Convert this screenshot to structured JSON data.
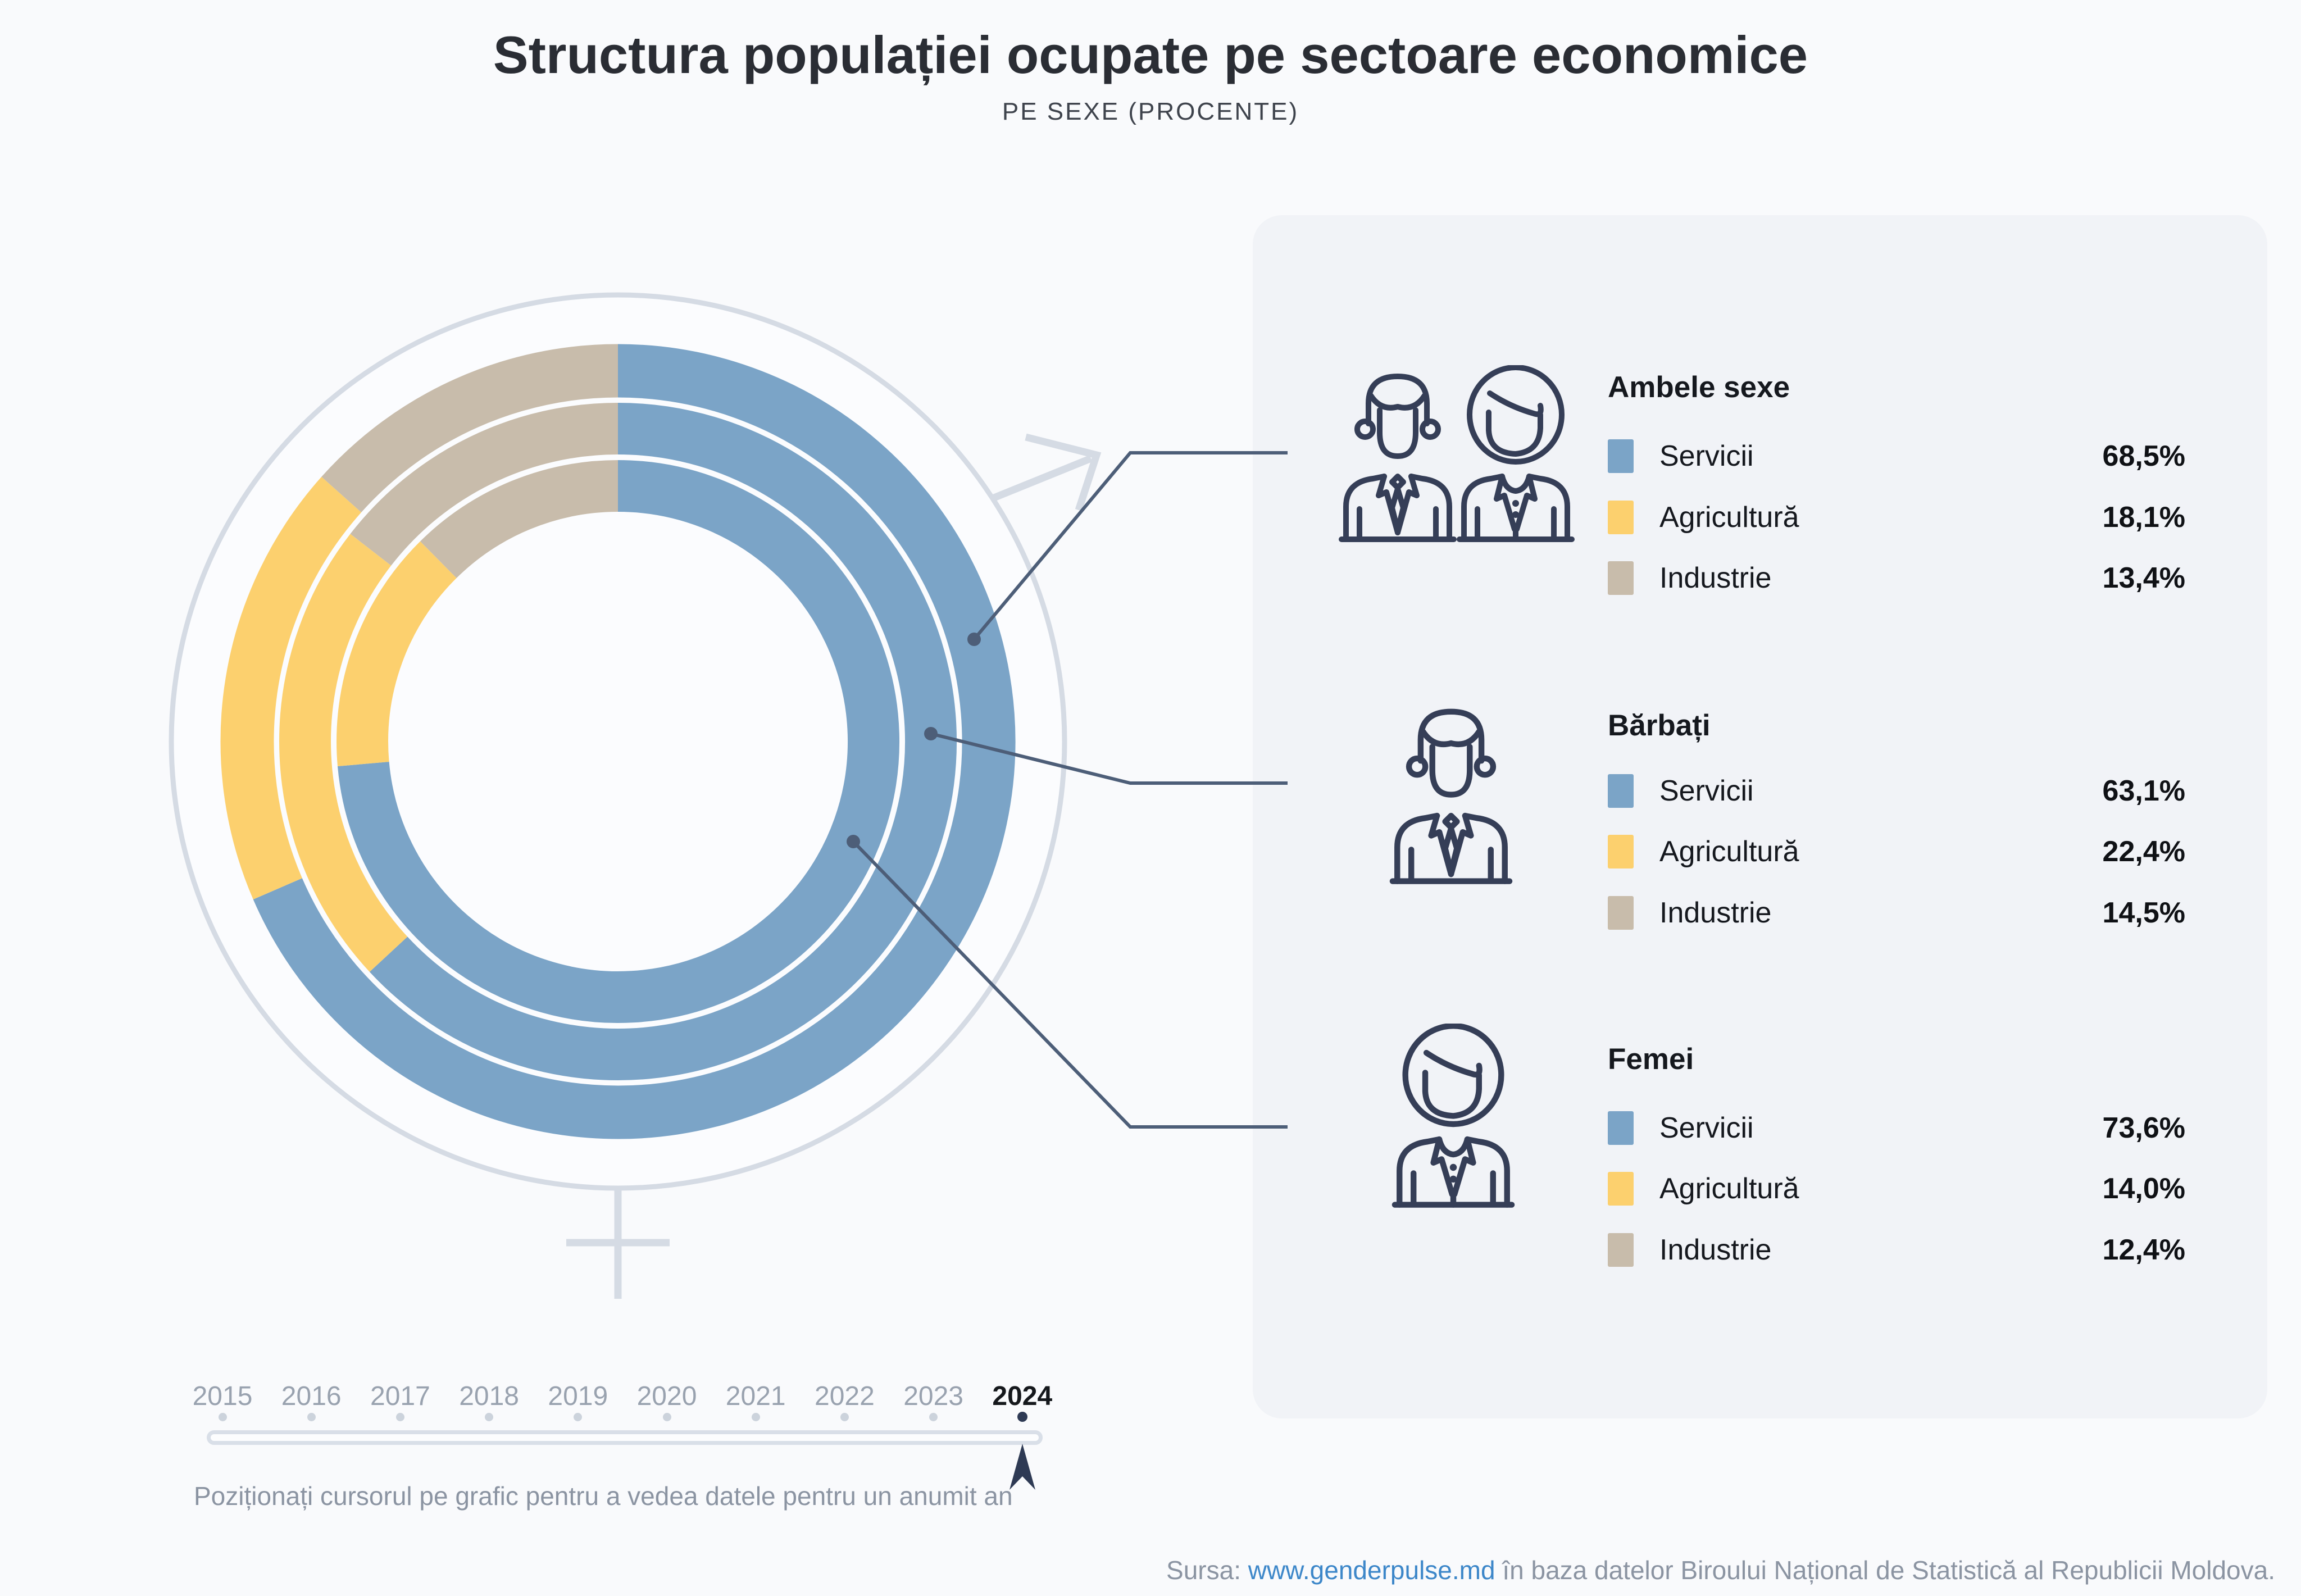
{
  "header": {
    "title": "Structura populației ocupate pe sectoare economice",
    "subtitle": "PE SEXE (PROCENTE)"
  },
  "legend": {
    "groups": [
      {
        "title": "Ambele sexe",
        "icon": "man-woman-icon",
        "rows": [
          {
            "label": "Servicii",
            "value": "68,5%",
            "color": "#7ba4c7"
          },
          {
            "label": "Agricultură",
            "value": "18,1%",
            "color": "#fcd06e"
          },
          {
            "label": "Industrie",
            "value": "13,4%",
            "color": "#c8bcab"
          }
        ]
      },
      {
        "title": "Bărbați",
        "icon": "man-icon",
        "rows": [
          {
            "label": "Servicii",
            "value": "63,1%",
            "color": "#7ba4c7"
          },
          {
            "label": "Agricultură",
            "value": "22,4%",
            "color": "#fcd06e"
          },
          {
            "label": "Industrie",
            "value": "14,5%",
            "color": "#c8bcab"
          }
        ]
      },
      {
        "title": "Femei",
        "icon": "woman-icon",
        "rows": [
          {
            "label": "Servicii",
            "value": "73,6%",
            "color": "#7ba4c7"
          },
          {
            "label": "Agricultură",
            "value": "14,0%",
            "color": "#fcd06e"
          },
          {
            "label": "Industrie",
            "value": "12,4%",
            "color": "#c8bcab"
          }
        ]
      }
    ]
  },
  "timeline": {
    "years": [
      "2015",
      "2016",
      "2017",
      "2018",
      "2019",
      "2020",
      "2021",
      "2022",
      "2023",
      "2024"
    ],
    "selected": "2024",
    "hint": "Poziționați cursorul pe grafic pentru a vedea datele pentru un anumit an"
  },
  "source": {
    "prefix": "Sursa: ",
    "link": "www.genderpulse.md",
    "suffix": " în baza datelor Biroului Național de Statistică al Republicii Moldova."
  },
  "colors": {
    "servicii_blue": "#7ba4c7",
    "agricultura_yellow": "#fcd06e",
    "industrie_tan": "#c8bcab",
    "accent_navy": "#2e3a54",
    "callout_navy": "#4d5e78",
    "gender_symbol_gray": "#d5dbe4",
    "link_blue": "#3d87c9"
  },
  "chart_data": {
    "type": "donut",
    "title": "Structura populației ocupate pe sectoare economice",
    "subtitle": "PE SEXE (PROCENTE)",
    "unit": "%",
    "year_selected": "2024",
    "legend_position": "right",
    "sector_colors": {
      "Servicii": "#7ba4c7",
      "Agricultură": "#fcd06e",
      "Industrie": "#c8bcab"
    },
    "rings": [
      {
        "group": "Ambele sexe",
        "position": "outer",
        "segments": [
          {
            "label": "Servicii",
            "value": 68.5
          },
          {
            "label": "Agricultură",
            "value": 18.1
          },
          {
            "label": "Industrie",
            "value": 13.4
          }
        ]
      },
      {
        "group": "Bărbați",
        "position": "middle",
        "segments": [
          {
            "label": "Servicii",
            "value": 63.1
          },
          {
            "label": "Agricultură",
            "value": 22.4
          },
          {
            "label": "Industrie",
            "value": 14.5
          }
        ]
      },
      {
        "group": "Femei",
        "position": "inner",
        "segments": [
          {
            "label": "Servicii",
            "value": 73.6
          },
          {
            "label": "Agricultură",
            "value": 14.0
          },
          {
            "label": "Industrie",
            "value": 12.4
          }
        ]
      }
    ],
    "timeline_years": [
      "2015",
      "2016",
      "2017",
      "2018",
      "2019",
      "2020",
      "2021",
      "2022",
      "2023",
      "2024"
    ]
  }
}
